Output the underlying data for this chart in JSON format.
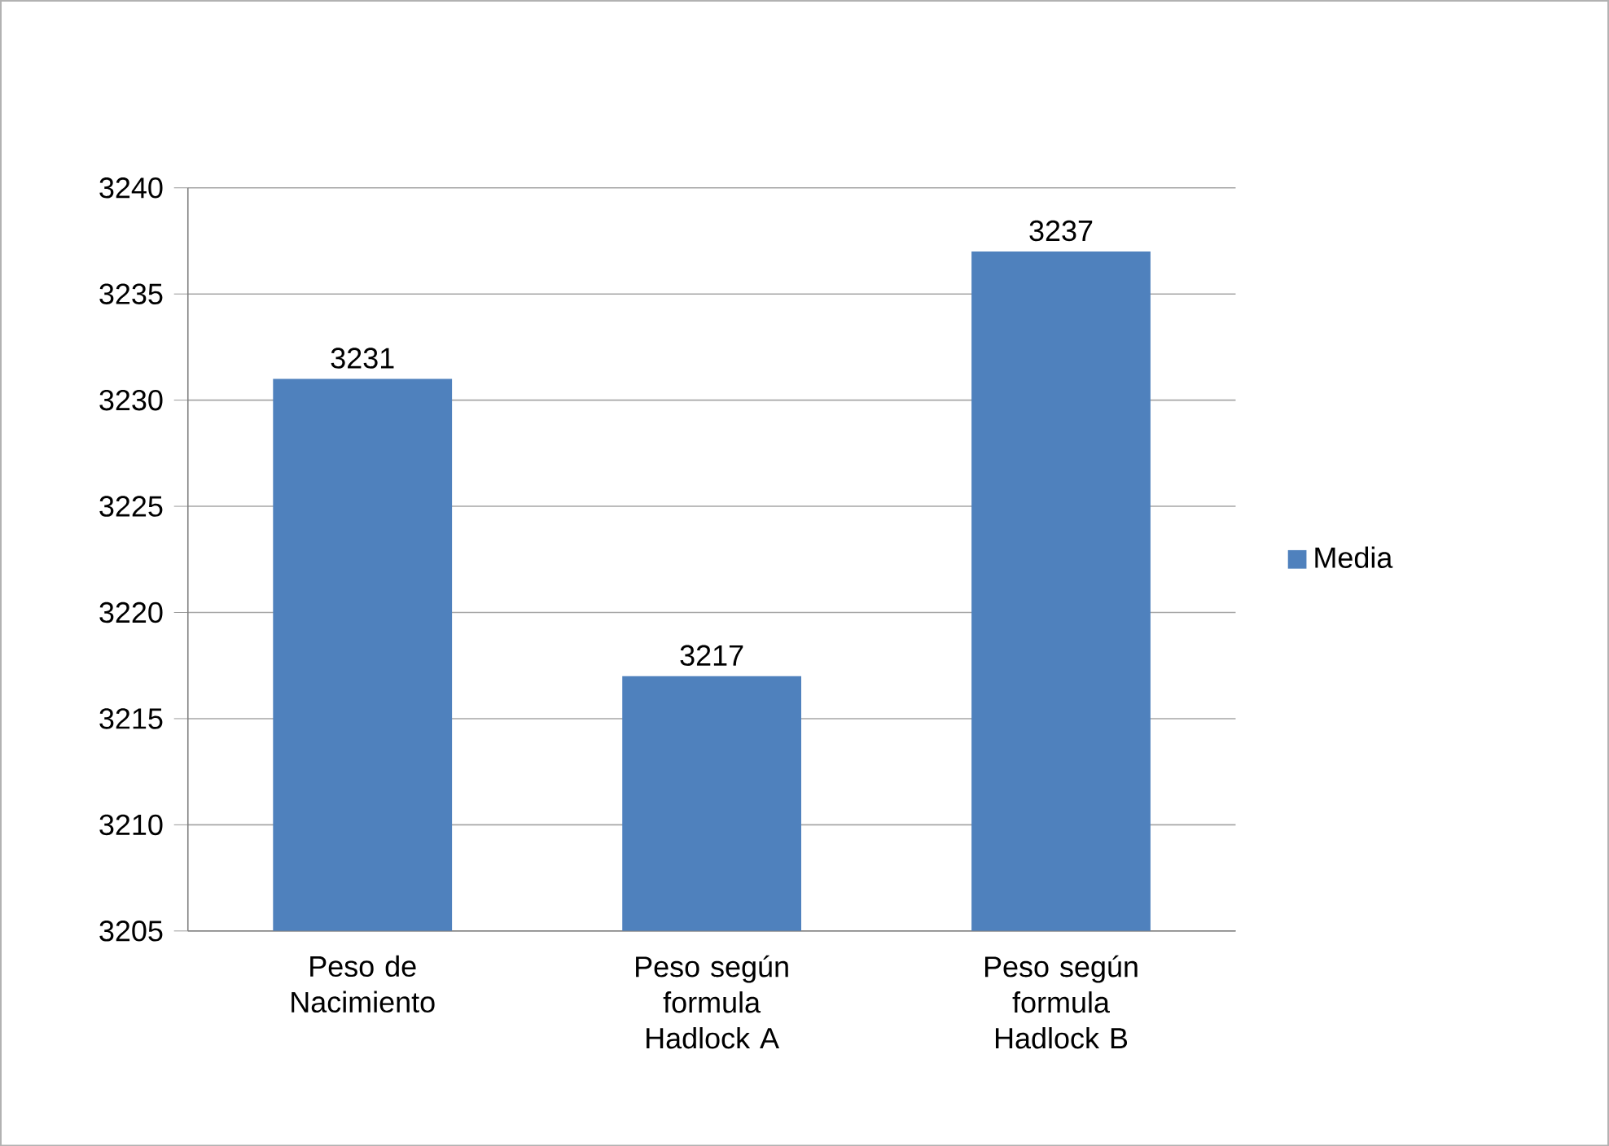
{
  "chart_data": {
    "type": "bar",
    "categories": [
      "Peso de Nacimiento",
      "Peso según formula Hadlock A",
      "Peso según formula Hadlock B"
    ],
    "series": [
      {
        "name": "Media",
        "color": "#4f81bd",
        "values": [
          3231,
          3217,
          3237
        ]
      }
    ],
    "ylim": [
      3205,
      3240
    ],
    "yticks": [
      3205,
      3210,
      3215,
      3220,
      3225,
      3230,
      3235,
      3240
    ],
    "grid": "y",
    "legend": "right",
    "data_labels": true
  }
}
